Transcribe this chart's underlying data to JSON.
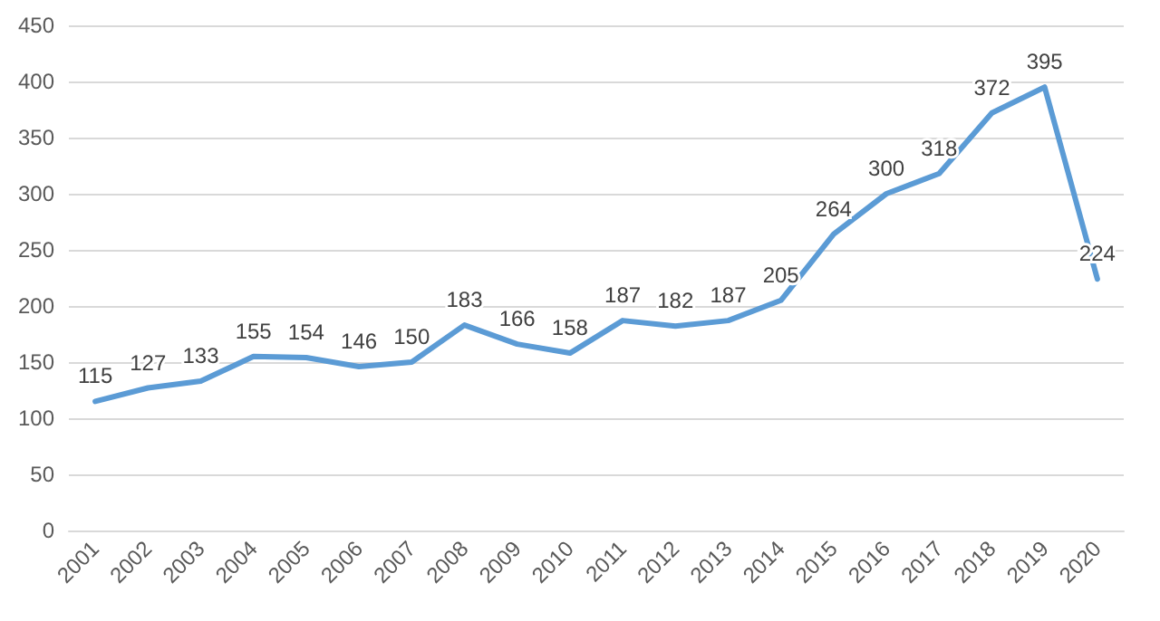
{
  "chart_data": {
    "type": "line",
    "categories": [
      "2001",
      "2002",
      "2003",
      "2004",
      "2005",
      "2006",
      "2007",
      "2008",
      "2009",
      "2010",
      "2011",
      "2012",
      "2013",
      "2014",
      "2015",
      "2016",
      "2017",
      "2018",
      "2019",
      "2020"
    ],
    "series": [
      {
        "color": "#5b9bd5",
        "values": [
          115,
          127,
          133,
          155,
          154,
          146,
          150,
          183,
          166,
          158,
          187,
          182,
          187,
          205,
          264,
          300,
          318,
          372,
          395,
          224
        ]
      }
    ],
    "ylim": [
      0,
      450
    ],
    "yticks": [
      0,
      50,
      100,
      150,
      200,
      250,
      300,
      350,
      400,
      450
    ],
    "grid": "y",
    "data_labels": true,
    "marker": "none",
    "line_style": "solid"
  }
}
